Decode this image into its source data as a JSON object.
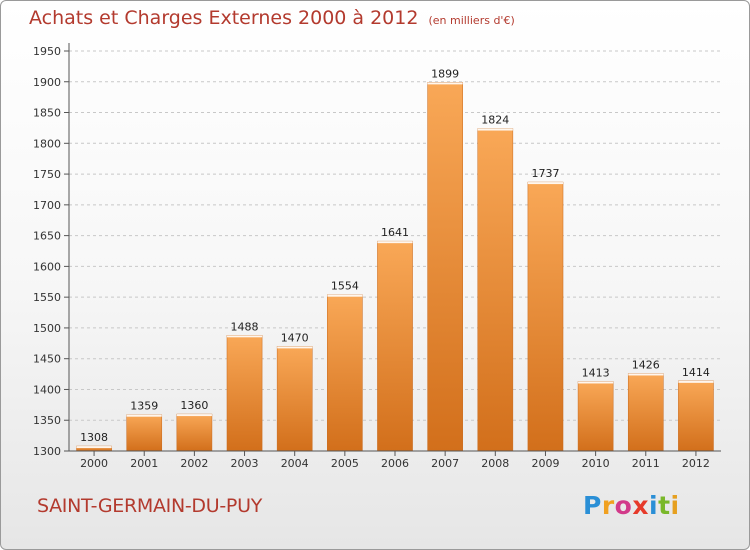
{
  "header": {
    "title": "Achats et Charges Externes 2000 à 2012",
    "unit": "(en milliers d'€)"
  },
  "footer": {
    "commune": "SAINT-GERMAIN-DU-PUY",
    "logo_letters": [
      {
        "ch": "P",
        "color": "#2a8fd6"
      },
      {
        "ch": "r",
        "color": "#f0a020"
      },
      {
        "ch": "o",
        "color": "#d23a8a"
      },
      {
        "ch": "x",
        "color": "#e63a2a"
      },
      {
        "ch": "i",
        "color": "#2a8fd6"
      },
      {
        "ch": "t",
        "color": "#7ab82a"
      },
      {
        "ch": "i",
        "color": "#e6a020"
      }
    ]
  },
  "colors": {
    "bar_light": "#f9a857",
    "bar_dark": "#d26f1b",
    "axis": "#555555",
    "grid": "#c8c8c8",
    "accent": "#b33a2e"
  },
  "chart_data": {
    "type": "bar",
    "title": "Achats et Charges Externes 2000 à 2012",
    "subtitle": "(en milliers d'€)",
    "xlabel": "",
    "ylabel": "",
    "categories": [
      "2000",
      "2001",
      "2002",
      "2003",
      "2004",
      "2005",
      "2006",
      "2007",
      "2008",
      "2009",
      "2010",
      "2011",
      "2012"
    ],
    "values": [
      1308,
      1359,
      1360,
      1488,
      1470,
      1554,
      1641,
      1899,
      1824,
      1737,
      1413,
      1426,
      1414
    ],
    "ylim": [
      1300,
      1950
    ],
    "yticks": [
      1300,
      1350,
      1400,
      1450,
      1500,
      1550,
      1600,
      1650,
      1700,
      1750,
      1800,
      1850,
      1900,
      1950
    ],
    "grid": "horizontal dashed",
    "legend": "none"
  }
}
